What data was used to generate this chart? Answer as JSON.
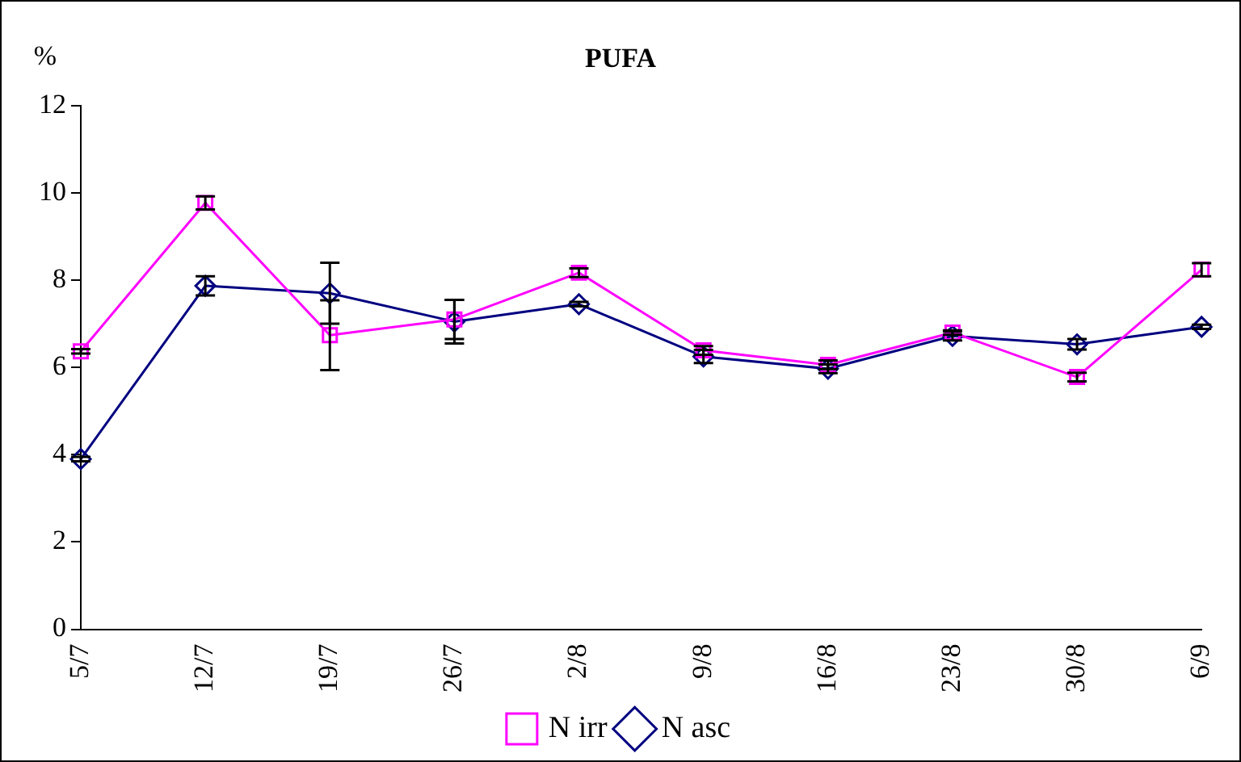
{
  "chart_data": {
    "type": "line",
    "title": "PUFA",
    "ylabel": "%",
    "categories": [
      "5/7",
      "12/7",
      "19/7",
      "26/7",
      "2/8",
      "9/8",
      "16/8",
      "23/8",
      "30/8",
      "6/9"
    ],
    "series": [
      {
        "name": "N asc",
        "color": "#000080",
        "marker": "diamond",
        "values": [
          3.9,
          7.87,
          7.7,
          7.05,
          7.45,
          6.25,
          5.97,
          6.72,
          6.53,
          6.93
        ],
        "errors": [
          0.05,
          0.22,
          0.7,
          0.5,
          0.05,
          0.15,
          0.1,
          0.1,
          0.12,
          0.05
        ]
      },
      {
        "name": "N irr",
        "color": "#ff00ff",
        "marker": "square",
        "values": [
          6.37,
          9.77,
          6.74,
          7.1,
          8.17,
          6.39,
          6.06,
          6.8,
          5.78,
          8.24
        ],
        "errors": [
          0.05,
          0.15,
          0.8,
          0.45,
          0.1,
          0.1,
          0.1,
          0.05,
          0.1,
          0.15
        ]
      }
    ],
    "ylim": [
      0,
      12
    ],
    "yticks": [
      0,
      2,
      4,
      6,
      8,
      10,
      12
    ],
    "grid": false,
    "legend": "bottom",
    "line_style": "solid"
  }
}
